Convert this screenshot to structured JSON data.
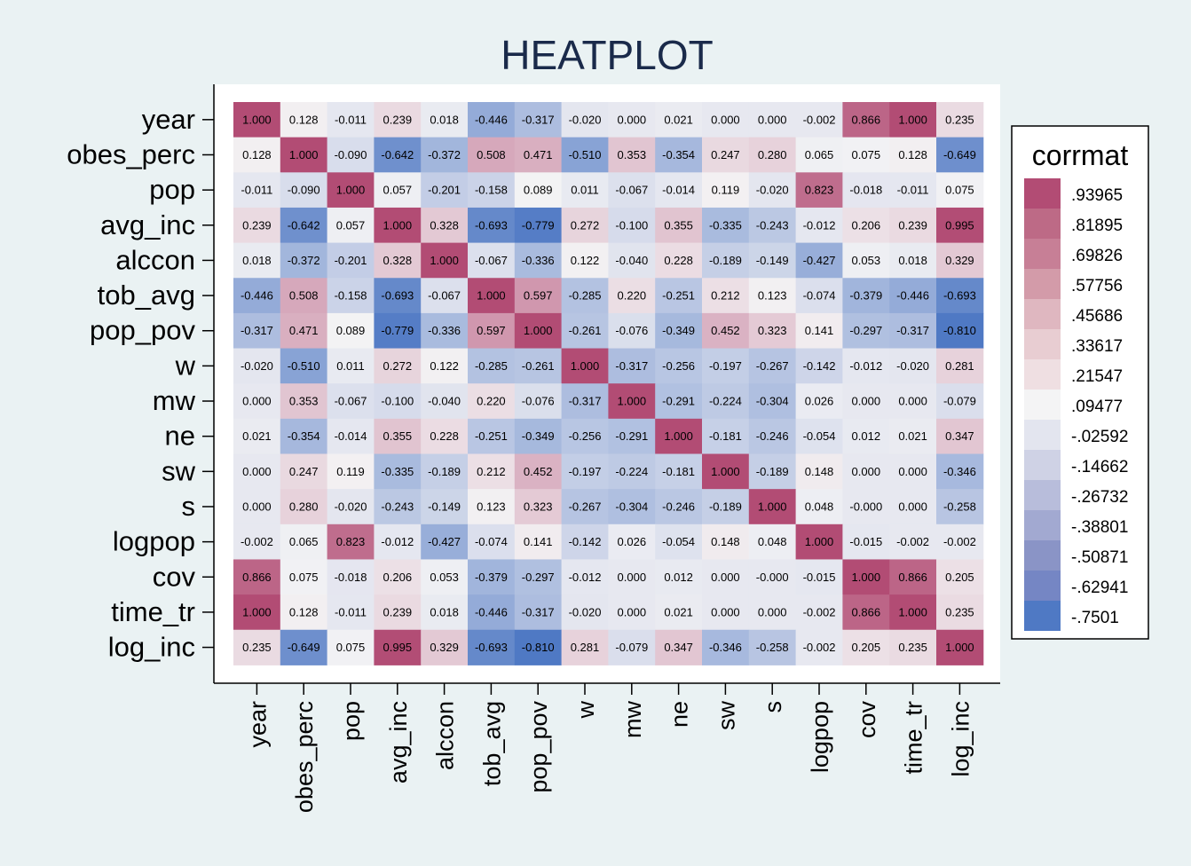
{
  "chart_data": {
    "type": "heatmap",
    "title": "HEATPLOT",
    "variables": [
      "year",
      "obes_perc",
      "pop",
      "avg_inc",
      "alccon",
      "tob_avg",
      "pop_pov",
      "w",
      "mw",
      "ne",
      "sw",
      "s",
      "logpop",
      "cov",
      "time_tr",
      "log_inc"
    ],
    "matrix": [
      [
        "1.000",
        "0.128",
        "-0.011",
        "0.239",
        "0.018",
        "-0.446",
        "-0.317",
        "-0.020",
        "0.000",
        "0.021",
        "0.000",
        "0.000",
        "-0.002",
        "0.866",
        "1.000",
        "0.235"
      ],
      [
        "0.128",
        "1.000",
        "-0.090",
        "-0.642",
        "-0.372",
        "0.508",
        "0.471",
        "-0.510",
        "0.353",
        "-0.354",
        "0.247",
        "0.280",
        "0.065",
        "0.075",
        "0.128",
        "-0.649"
      ],
      [
        "-0.011",
        "-0.090",
        "1.000",
        "0.057",
        "-0.201",
        "-0.158",
        "0.089",
        "0.011",
        "-0.067",
        "-0.014",
        "0.119",
        "-0.020",
        "0.823",
        "-0.018",
        "-0.011",
        "0.075"
      ],
      [
        "0.239",
        "-0.642",
        "0.057",
        "1.000",
        "0.328",
        "-0.693",
        "-0.779",
        "0.272",
        "-0.100",
        "0.355",
        "-0.335",
        "-0.243",
        "-0.012",
        "0.206",
        "0.239",
        "0.995"
      ],
      [
        "0.018",
        "-0.372",
        "-0.201",
        "0.328",
        "1.000",
        "-0.067",
        "-0.336",
        "0.122",
        "-0.040",
        "0.228",
        "-0.189",
        "-0.149",
        "-0.427",
        "0.053",
        "0.018",
        "0.329"
      ],
      [
        "-0.446",
        "0.508",
        "-0.158",
        "-0.693",
        "-0.067",
        "1.000",
        "0.597",
        "-0.285",
        "0.220",
        "-0.251",
        "0.212",
        "0.123",
        "-0.074",
        "-0.379",
        "-0.446",
        "-0.693"
      ],
      [
        "-0.317",
        "0.471",
        "0.089",
        "-0.779",
        "-0.336",
        "0.597",
        "1.000",
        "-0.261",
        "-0.076",
        "-0.349",
        "0.452",
        "0.323",
        "0.141",
        "-0.297",
        "-0.317",
        "-0.810"
      ],
      [
        "-0.020",
        "-0.510",
        "0.011",
        "0.272",
        "0.122",
        "-0.285",
        "-0.261",
        "1.000",
        "-0.317",
        "-0.256",
        "-0.197",
        "-0.267",
        "-0.142",
        "-0.012",
        "-0.020",
        "0.281"
      ],
      [
        "0.000",
        "0.353",
        "-0.067",
        "-0.100",
        "-0.040",
        "0.220",
        "-0.076",
        "-0.317",
        "1.000",
        "-0.291",
        "-0.224",
        "-0.304",
        "0.026",
        "0.000",
        "0.000",
        "-0.079"
      ],
      [
        "0.021",
        "-0.354",
        "-0.014",
        "0.355",
        "0.228",
        "-0.251",
        "-0.349",
        "-0.256",
        "-0.291",
        "1.000",
        "-0.181",
        "-0.246",
        "-0.054",
        "0.012",
        "0.021",
        "0.347"
      ],
      [
        "0.000",
        "0.247",
        "0.119",
        "-0.335",
        "-0.189",
        "0.212",
        "0.452",
        "-0.197",
        "-0.224",
        "-0.181",
        "1.000",
        "-0.189",
        "0.148",
        "0.000",
        "0.000",
        "-0.346"
      ],
      [
        "0.000",
        "0.280",
        "-0.020",
        "-0.243",
        "-0.149",
        "0.123",
        "0.323",
        "-0.267",
        "-0.304",
        "-0.246",
        "-0.189",
        "1.000",
        "0.048",
        "-0.000",
        "0.000",
        "-0.258"
      ],
      [
        "-0.002",
        "0.065",
        "0.823",
        "-0.012",
        "-0.427",
        "-0.074",
        "0.141",
        "-0.142",
        "0.026",
        "-0.054",
        "0.148",
        "0.048",
        "1.000",
        "-0.015",
        "-0.002",
        "-0.002"
      ],
      [
        "0.866",
        "0.075",
        "-0.018",
        "0.206",
        "0.053",
        "-0.379",
        "-0.297",
        "-0.012",
        "0.000",
        "0.012",
        "0.000",
        "-0.000",
        "-0.015",
        "1.000",
        "0.866",
        "0.205"
      ],
      [
        "1.000",
        "0.128",
        "-0.011",
        "0.239",
        "0.018",
        "-0.446",
        "-0.317",
        "-0.020",
        "0.000",
        "0.021",
        "0.000",
        "0.000",
        "-0.002",
        "0.866",
        "1.000",
        "0.235"
      ],
      [
        "0.235",
        "-0.649",
        "0.075",
        "0.995",
        "0.329",
        "-0.693",
        "-0.810",
        "0.281",
        "-0.079",
        "0.347",
        "-0.346",
        "-0.258",
        "-0.002",
        "0.205",
        "0.235",
        "1.000"
      ]
    ],
    "legend": {
      "title": "corrmat",
      "placement": "right",
      "labels": [
        ".93965",
        ".81895",
        ".69826",
        ".57756",
        ".45686",
        ".33617",
        ".21547",
        ".09477",
        "-.02592",
        "-.14662",
        "-.26732",
        "-.38801",
        "-.50871",
        "-.62941",
        "-.7501"
      ],
      "colors": [
        "#b24c74",
        "#bd6a86",
        "#c77f96",
        "#d39ba9",
        "#dfb7c0",
        "#e8cdd2",
        "#efdfe2",
        "#f4f4f5",
        "#e3e5ef",
        "#cfd2e5",
        "#b8bddb",
        "#a2a9d1",
        "#8a94c6",
        "#7586c4",
        "#4f79c4"
      ]
    },
    "colors": {
      "background": "#eaf2f3",
      "plot_area": "#ffffff",
      "title": "#1a2a4a"
    }
  }
}
